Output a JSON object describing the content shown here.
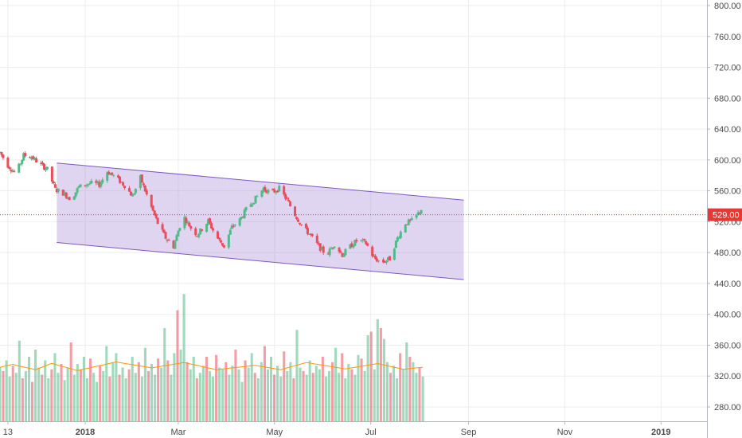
{
  "chart_data": {
    "type": "candlestick",
    "price_axis": {
      "ticks": [
        "800.00",
        "760.00",
        "720.00",
        "680.00",
        "640.00",
        "600.00",
        "560.00",
        "520.00",
        "480.00",
        "440.00",
        "400.00",
        "360.00",
        "320.00",
        "280.00"
      ],
      "range": [
        266,
        808
      ]
    },
    "time_axis": {
      "labels": [
        {
          "text": "13",
          "date": "2017-11-13",
          "bold": false
        },
        {
          "text": "2018",
          "date": "2018-01-01",
          "bold": true
        },
        {
          "text": "Mar",
          "date": "2018-03-01",
          "bold": false
        },
        {
          "text": "May",
          "date": "2018-05-01",
          "bold": false
        },
        {
          "text": "Jul",
          "date": "2018-07-01",
          "bold": false
        },
        {
          "text": "Sep",
          "date": "2018-09-01",
          "bold": false
        },
        {
          "text": "Nov",
          "date": "2018-11-01",
          "bold": false
        },
        {
          "text": "2019",
          "date": "2019-01-01",
          "bold": true
        }
      ],
      "range": [
        "2017-11-08",
        "2019-01-16"
      ]
    },
    "last_price": {
      "label": "529.00",
      "value": 529
    },
    "colors": {
      "up": "#53b987",
      "down": "#eb4d5c",
      "channel_fill": "#9575cd",
      "channel_line": "#7e57c2",
      "ma": "#ff9800",
      "price_line": "#e53935"
    },
    "channel": {
      "upper": [
        {
          "date": "2017-12-14",
          "value": 596
        },
        {
          "date": "2018-08-29",
          "value": 548
        }
      ],
      "lower": [
        {
          "date": "2017-12-14",
          "value": 493
        },
        {
          "date": "2018-08-29",
          "value": 445
        }
      ]
    },
    "price_path": [
      [
        "2017-11-08",
        610
      ],
      [
        "2017-11-13",
        593
      ],
      [
        "2017-11-18",
        582
      ],
      [
        "2017-11-23",
        606
      ],
      [
        "2017-11-28",
        604
      ],
      [
        "2017-12-03",
        595
      ],
      [
        "2017-12-08",
        588
      ],
      [
        "2017-12-13",
        562
      ],
      [
        "2017-12-18",
        557
      ],
      [
        "2017-12-23",
        549
      ],
      [
        "2017-12-28",
        565
      ],
      [
        "2018-01-04",
        570
      ],
      [
        "2018-01-10",
        568
      ],
      [
        "2018-01-15",
        585
      ],
      [
        "2018-01-20",
        578
      ],
      [
        "2018-01-26",
        567
      ],
      [
        "2018-01-31",
        553
      ],
      [
        "2018-02-05",
        577
      ],
      [
        "2018-02-10",
        549
      ],
      [
        "2018-02-16",
        518
      ],
      [
        "2018-02-21",
        499
      ],
      [
        "2018-02-26",
        488
      ],
      [
        "2018-03-04",
        528
      ],
      [
        "2018-03-09",
        512
      ],
      [
        "2018-03-13",
        503
      ],
      [
        "2018-03-20",
        521
      ],
      [
        "2018-03-25",
        501
      ],
      [
        "2018-03-30",
        488
      ],
      [
        "2018-04-04",
        513
      ],
      [
        "2018-04-09",
        522
      ],
      [
        "2018-04-14",
        539
      ],
      [
        "2018-04-19",
        550
      ],
      [
        "2018-04-24",
        563
      ],
      [
        "2018-04-29",
        557
      ],
      [
        "2018-05-04",
        563
      ],
      [
        "2018-05-09",
        548
      ],
      [
        "2018-05-14",
        529
      ],
      [
        "2018-05-19",
        513
      ],
      [
        "2018-05-24",
        502
      ],
      [
        "2018-05-29",
        488
      ],
      [
        "2018-06-03",
        477
      ],
      [
        "2018-06-08",
        491
      ],
      [
        "2018-06-13",
        477
      ],
      [
        "2018-06-18",
        488
      ],
      [
        "2018-06-23",
        497
      ],
      [
        "2018-06-28",
        492
      ],
      [
        "2018-07-03",
        473
      ],
      [
        "2018-07-08",
        467
      ],
      [
        "2018-07-13",
        472
      ],
      [
        "2018-07-18",
        499
      ],
      [
        "2018-07-23",
        518
      ],
      [
        "2018-07-28",
        522
      ],
      [
        "2018-08-02",
        536
      ]
    ],
    "volume": {
      "values": [
        30,
        28,
        34,
        25,
        31,
        27,
        45,
        24,
        28,
        36,
        22,
        40,
        30,
        26,
        34,
        24,
        29,
        38,
        27,
        32,
        23,
        30,
        44,
        26,
        32,
        29,
        36,
        24,
        35,
        27,
        22,
        31,
        28,
        42,
        25,
        33,
        38,
        26,
        30,
        24,
        29,
        36,
        27,
        33,
        25,
        41,
        28,
        32,
        26,
        35,
        30,
        52,
        34,
        26,
        38,
        62,
        40,
        71,
        33,
        29,
        36,
        24,
        27,
        31,
        36,
        28,
        25,
        37,
        30,
        29,
        33,
        26,
        31,
        40,
        29,
        22,
        34,
        30,
        38,
        27,
        24,
        33,
        42,
        29,
        36,
        26,
        31,
        25,
        39,
        28,
        33,
        24,
        51,
        30,
        28,
        26,
        34,
        27,
        31,
        29,
        36,
        25,
        28,
        33,
        41,
        27,
        38,
        24,
        32,
        29,
        26,
        37,
        35,
        28,
        48,
        50,
        29,
        57,
        52,
        46,
        33,
        27,
        31,
        24,
        38,
        29,
        44,
        36,
        33,
        27,
        30,
        25
      ],
      "ma": [
        30.1,
        30.6,
        31,
        31.4,
        31.8,
        31.2,
        30.8,
        30.4,
        30,
        29.6,
        29.2,
        28.8,
        29.5,
        30.2,
        30.9,
        31.6,
        32.3,
        31.8,
        31.3,
        30.8,
        30.3,
        29.8,
        29.3,
        28.8,
        28.3,
        28.7,
        29.1,
        29.5,
        29.9,
        30.3,
        30.7,
        31.1,
        31.5,
        31.9,
        32.3,
        32.7,
        33.1,
        32.8,
        32.5,
        32.2,
        31.9,
        31.6,
        31.3,
        31,
        30.7,
        30.4,
        30.1,
        29.8,
        30.1,
        30.4,
        30.7,
        31,
        31.3,
        31.6,
        31.9,
        32.2,
        32.5,
        32.8,
        32.4,
        32,
        31.6,
        31.2,
        30.8,
        30.4,
        30,
        29.6,
        29.2,
        28.8,
        29,
        29.2,
        29.4,
        29.6,
        29.8,
        30,
        30.2,
        30.4,
        30.6,
        30.8,
        31,
        31.2,
        30.9,
        30.6,
        30.3,
        30,
        29.7,
        29.4,
        29.1,
        28.8,
        29.3,
        29.8,
        30.3,
        30.8,
        31.3,
        31.8,
        32.3,
        32.8,
        32.5,
        32.2,
        31.9,
        31.6,
        31.3,
        31,
        30.7,
        30.4,
        30.1,
        29.8,
        29.5,
        29.2,
        29.5,
        29.8,
        30.1,
        30.4,
        30.7,
        31,
        31.3,
        31.6,
        31.9,
        32.2,
        31.8,
        31.4,
        31,
        30.6,
        30.2,
        29.8,
        29.4,
        29,
        29.2,
        29.4,
        29.6,
        29.8,
        30,
        30.2
      ]
    }
  }
}
